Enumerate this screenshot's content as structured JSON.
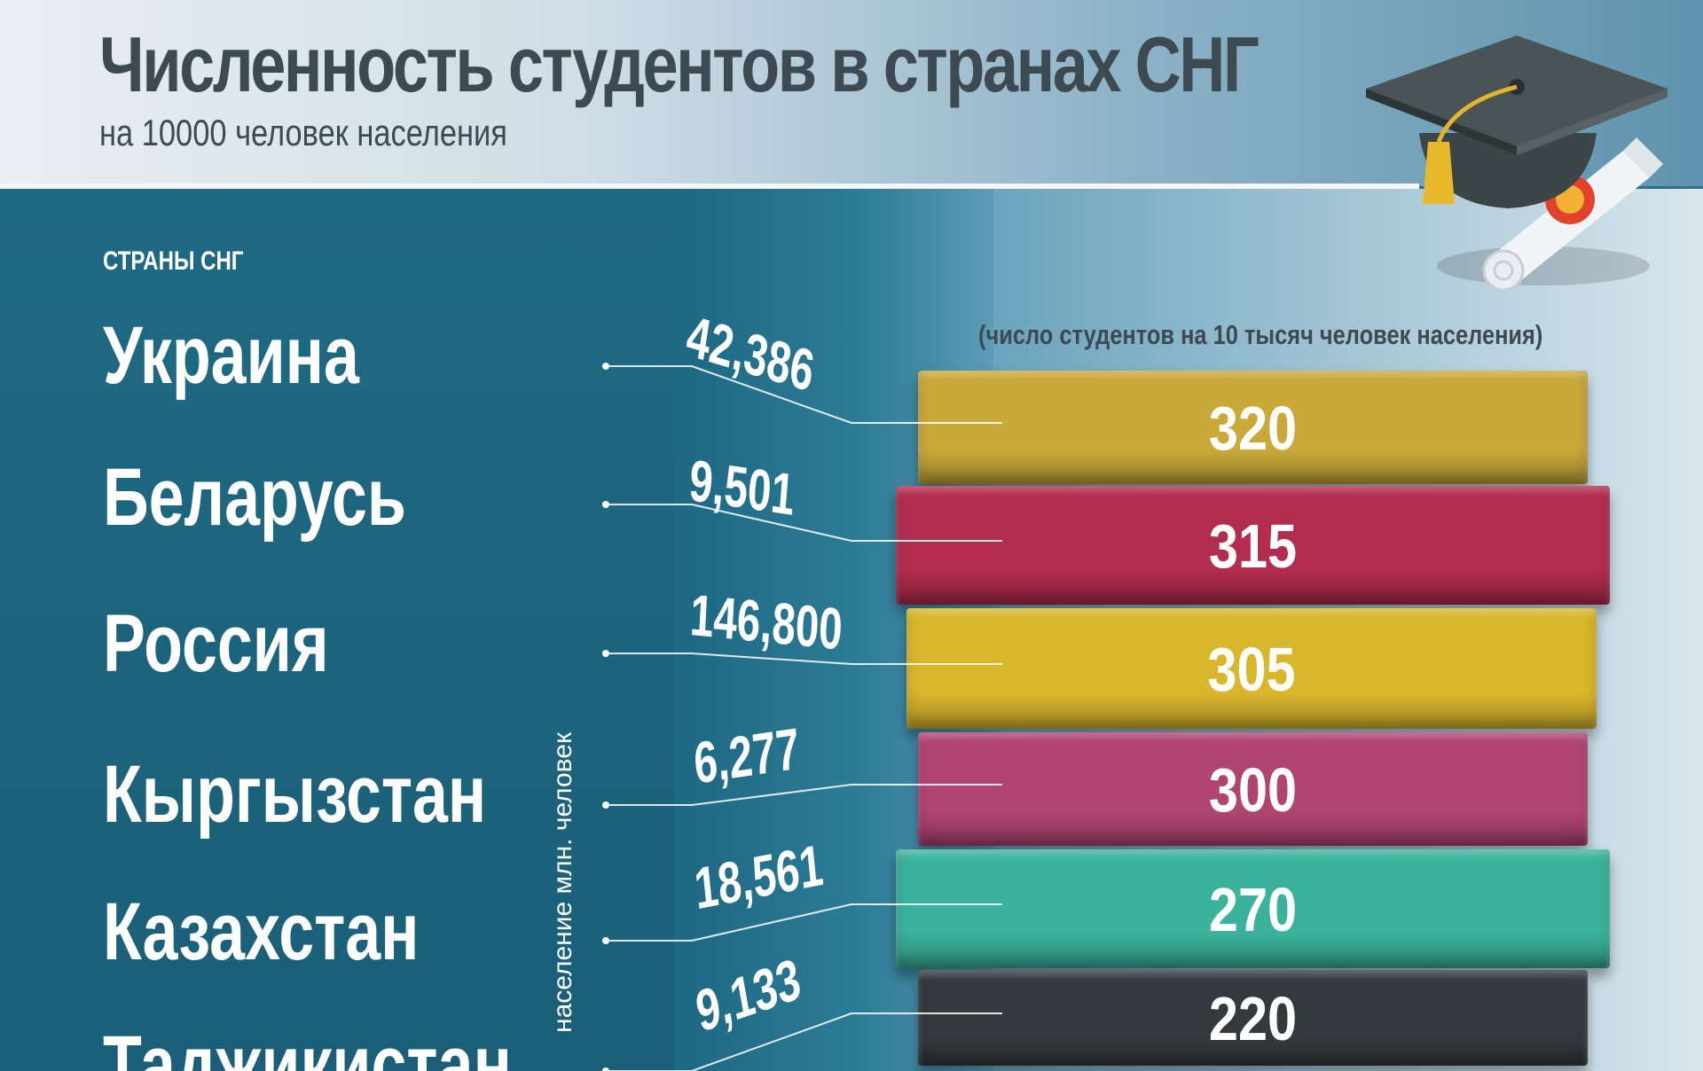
{
  "header": {
    "title": "Численность студентов в странах СНГ",
    "subtitle": "на 10000 человек населения"
  },
  "section_label": "СТРАНЫ СНГ",
  "population_axis_label": "население млн. человек",
  "students_axis_label": "(число студентов на 10 тысяч человек населения)",
  "chart_data": {
    "type": "bar",
    "title": "Численность студентов в странах СНГ",
    "subtitle": "на 10000 человек населения",
    "categories": [
      "Украина",
      "Беларусь",
      "Россия",
      "Кыргызстан",
      "Казахстан",
      "Таджикистан"
    ],
    "series": [
      {
        "name": "(число студентов на 10 тысяч человек населения)",
        "values": [
          320,
          315,
          305,
          300,
          270,
          220
        ],
        "labels": [
          "320",
          "315",
          "305",
          "300",
          "270",
          "220"
        ],
        "colors": [
          "#c9a93a",
          "#b22d4e",
          "#d9b72c",
          "#b04572",
          "#3bb39c",
          "#333a3e"
        ]
      },
      {
        "name": "население млн. человек",
        "values": [
          42.386,
          9.501,
          146.8,
          6.277,
          18.561,
          9.133
        ],
        "labels": [
          "42,386",
          "9,501",
          "146,800",
          "6,277",
          "18,561",
          "9,133"
        ]
      }
    ],
    "xlabel": "",
    "ylabel": "",
    "legend": "none",
    "grid": false
  },
  "icons": [
    "graduation-cap-icon",
    "diploma-scroll-icon"
  ]
}
